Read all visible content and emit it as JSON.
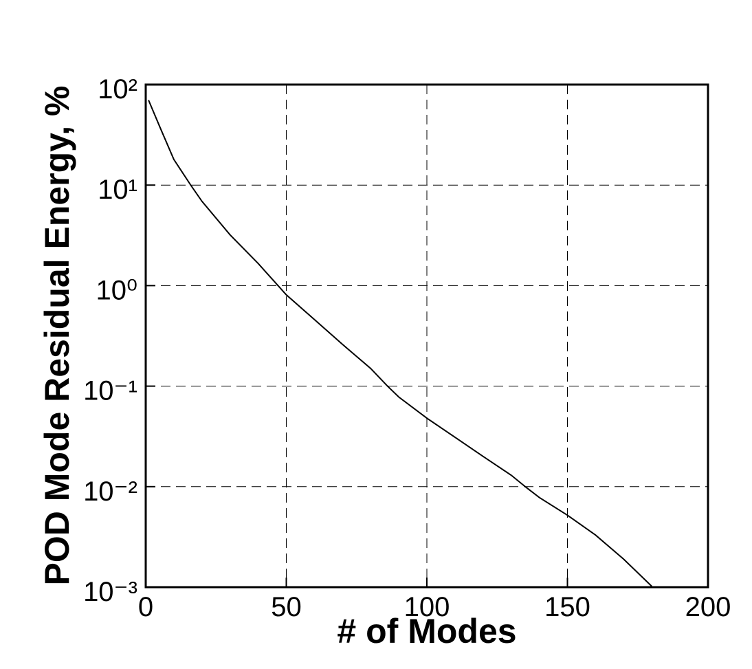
{
  "chart_data": {
    "type": "line",
    "xlabel": "# of Modes",
    "ylabel": "POD Mode Residual Energy, %",
    "x": [
      1,
      5,
      10,
      16,
      20,
      30,
      40,
      50,
      60,
      70,
      80,
      86,
      90,
      100,
      110,
      120,
      130,
      135,
      140,
      150,
      160,
      170,
      180
    ],
    "series": [
      {
        "color": "#000000",
        "values": [
          70,
          38,
          18,
          10,
          6.9,
          3.2,
          1.66,
          0.81,
          0.46,
          0.26,
          0.15,
          0.1,
          0.078,
          0.048,
          0.031,
          0.02,
          0.013,
          0.01,
          0.0078,
          0.0052,
          0.0033,
          0.0019,
          0.00102
        ]
      }
    ],
    "xlim": [
      0,
      200
    ],
    "xticks": [
      0,
      50,
      100,
      150,
      200
    ],
    "ylim": [
      0.001,
      100
    ],
    "yticks": [
      {
        "value": 0.001,
        "label": "10⁻³"
      },
      {
        "value": 0.01,
        "label": "10⁻²"
      },
      {
        "value": 0.1,
        "label": "10⁻¹"
      },
      {
        "value": 1,
        "label": "10⁰"
      },
      {
        "value": 10,
        "label": "10¹"
      },
      {
        "value": 100,
        "label": "10²"
      }
    ],
    "ylog": true,
    "grid": true
  }
}
